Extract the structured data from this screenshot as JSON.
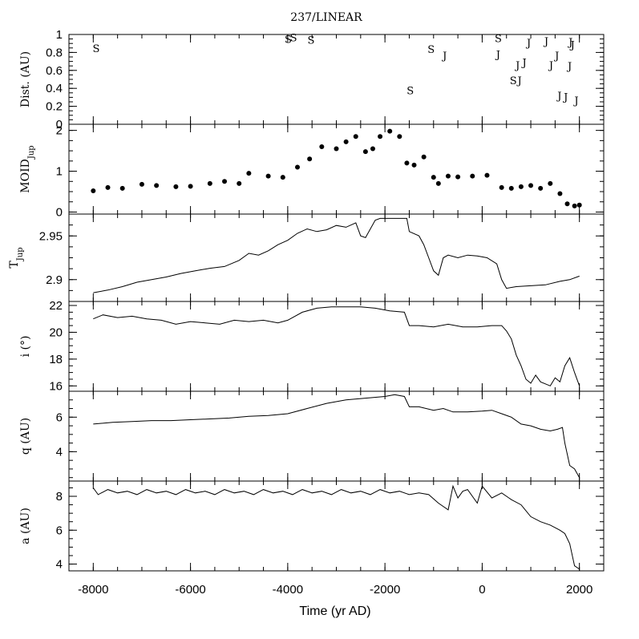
{
  "title": "237/LINEAR",
  "xlabel": "Time (yr AD)",
  "chart_data": {
    "type": "line",
    "title": "237/LINEAR",
    "xlabel": "Time (yr AD)",
    "xlim": [
      -8500,
      2500
    ],
    "xticks": [
      -8000,
      -6000,
      -4000,
      -2000,
      0,
      2000
    ],
    "panels": [
      {
        "id": "dist",
        "ylabel": "Dist. (AU)",
        "type": "markers",
        "ylim": [
          0,
          1
        ],
        "yticks": [
          0,
          0.2,
          0.4,
          0.6,
          0.8,
          1
        ],
        "yticklabels": [
          "0",
          "0.2",
          "0.4",
          "0.6",
          "0.8",
          "1"
        ],
        "points": [
          {
            "x": -7940,
            "y": 0.85,
            "label": "S"
          },
          {
            "x": -3990,
            "y": 0.95,
            "label": "S"
          },
          {
            "x": -3880,
            "y": 0.97,
            "label": "S"
          },
          {
            "x": -3520,
            "y": 0.94,
            "label": "S"
          },
          {
            "x": -1480,
            "y": 0.38,
            "label": "S"
          },
          {
            "x": -1050,
            "y": 0.84,
            "label": "S"
          },
          {
            "x": -770,
            "y": 0.77,
            "label": "J"
          },
          {
            "x": 330,
            "y": 0.96,
            "label": "S"
          },
          {
            "x": 330,
            "y": 0.78,
            "label": "J"
          },
          {
            "x": 640,
            "y": 0.49,
            "label": "S"
          },
          {
            "x": 770,
            "y": 0.49,
            "label": "J"
          },
          {
            "x": 730,
            "y": 0.66,
            "label": "J"
          },
          {
            "x": 870,
            "y": 0.69,
            "label": "J"
          },
          {
            "x": 960,
            "y": 0.91,
            "label": "J"
          },
          {
            "x": 1320,
            "y": 0.93,
            "label": "J"
          },
          {
            "x": 1420,
            "y": 0.66,
            "label": "J"
          },
          {
            "x": 1540,
            "y": 0.77,
            "label": "J"
          },
          {
            "x": 1590,
            "y": 0.32,
            "label": "J"
          },
          {
            "x": 1720,
            "y": 0.31,
            "label": "J"
          },
          {
            "x": 1820,
            "y": 0.92,
            "label": "J"
          },
          {
            "x": 1860,
            "y": 0.89,
            "label": "J"
          },
          {
            "x": 1800,
            "y": 0.65,
            "label": "J"
          },
          {
            "x": 1940,
            "y": 0.27,
            "label": "J"
          }
        ]
      },
      {
        "id": "moid",
        "ylabel": "MOID",
        "ylabel_sub": "Jup",
        "type": "dots",
        "ylim": [
          -0.05,
          2.15
        ],
        "yticks": [
          0,
          1,
          2
        ],
        "yticklabels": [
          "0",
          "1",
          "2"
        ],
        "x": [
          -8000,
          -7700,
          -7400,
          -7000,
          -6700,
          -6300,
          -6000,
          -5600,
          -5300,
          -5000,
          -4800,
          -4400,
          -4100,
          -3800,
          -3550,
          -3300,
          -3000,
          -2800,
          -2600,
          -2400,
          -2250,
          -2100,
          -1900,
          -1700,
          -1550,
          -1400,
          -1200,
          -1000,
          -900,
          -700,
          -500,
          -200,
          100,
          400,
          600,
          800,
          1000,
          1200,
          1400,
          1600,
          1750,
          1900,
          2000
        ],
        "y": [
          0.52,
          0.6,
          0.58,
          0.68,
          0.65,
          0.62,
          0.63,
          0.7,
          0.75,
          0.7,
          0.95,
          0.88,
          0.85,
          1.1,
          1.3,
          1.6,
          1.55,
          1.72,
          1.85,
          1.48,
          1.55,
          1.85,
          1.98,
          1.85,
          1.2,
          1.15,
          1.35,
          0.85,
          0.7,
          0.88,
          0.86,
          0.88,
          0.9,
          0.6,
          0.58,
          0.62,
          0.65,
          0.58,
          0.7,
          0.45,
          0.2,
          0.15,
          0.17
        ]
      },
      {
        "id": "tjup",
        "ylabel": "T",
        "ylabel_sub": "Jup",
        "type": "line",
        "ylim": [
          2.875,
          2.975
        ],
        "yticks": [
          2.9,
          2.95
        ],
        "yticklabels": [
          "2.9",
          "2.95"
        ],
        "x": [
          -8000,
          -7700,
          -7400,
          -7100,
          -6800,
          -6500,
          -6200,
          -5900,
          -5600,
          -5300,
          -5000,
          -4800,
          -4600,
          -4400,
          -4200,
          -4000,
          -3800,
          -3600,
          -3400,
          -3200,
          -3000,
          -2800,
          -2600,
          -2500,
          -2400,
          -2200,
          -2100,
          -1900,
          -1700,
          -1550,
          -1500,
          -1300,
          -1200,
          -1100,
          -1000,
          -900,
          -800,
          -700,
          -500,
          -300,
          -100,
          100,
          300,
          400,
          500,
          700,
          1000,
          1300,
          1600,
          1800,
          2000
        ],
        "y": [
          2.885,
          2.888,
          2.892,
          2.897,
          2.9,
          2.903,
          2.907,
          2.91,
          2.913,
          2.915,
          2.922,
          2.93,
          2.928,
          2.933,
          2.94,
          2.945,
          2.953,
          2.958,
          2.955,
          2.957,
          2.962,
          2.96,
          2.965,
          2.95,
          2.948,
          2.968,
          2.97,
          2.97,
          2.97,
          2.97,
          2.955,
          2.95,
          2.94,
          2.925,
          2.91,
          2.905,
          2.925,
          2.928,
          2.925,
          2.928,
          2.927,
          2.925,
          2.918,
          2.9,
          2.89,
          2.892,
          2.893,
          2.894,
          2.898,
          2.9,
          2.904
        ]
      },
      {
        "id": "incl",
        "ylabel": "i (°)",
        "type": "line",
        "ylim": [
          15.6,
          22.3
        ],
        "yticks": [
          16,
          18,
          20,
          22
        ],
        "yticklabels": [
          "16",
          "18",
          "20",
          "22"
        ],
        "x": [
          -8000,
          -7800,
          -7500,
          -7200,
          -6900,
          -6600,
          -6300,
          -6000,
          -5700,
          -5400,
          -5100,
          -4800,
          -4500,
          -4200,
          -4000,
          -3700,
          -3400,
          -3100,
          -2800,
          -2500,
          -2200,
          -1900,
          -1600,
          -1500,
          -1300,
          -1000,
          -700,
          -400,
          -100,
          200,
          400,
          500,
          600,
          700,
          800,
          900,
          1000,
          1100,
          1200,
          1400,
          1500,
          1600,
          1700,
          1800,
          1900,
          2000
        ],
        "y": [
          21.0,
          21.3,
          21.1,
          21.2,
          21.0,
          20.9,
          20.6,
          20.8,
          20.7,
          20.6,
          20.9,
          20.8,
          20.9,
          20.7,
          20.9,
          21.5,
          21.8,
          21.9,
          21.9,
          21.9,
          21.8,
          21.6,
          21.5,
          20.5,
          20.5,
          20.4,
          20.6,
          20.4,
          20.4,
          20.5,
          20.5,
          20.1,
          19.5,
          18.3,
          17.5,
          16.5,
          16.2,
          16.8,
          16.3,
          16.0,
          16.6,
          16.3,
          17.5,
          18.1,
          17.0,
          16.0
        ]
      },
      {
        "id": "q",
        "ylabel": "q (AU)",
        "type": "line",
        "ylim": [
          2.3,
          7.5
        ],
        "yticks": [
          4,
          6
        ],
        "yticklabels": [
          "4",
          "6"
        ],
        "x": [
          -8000,
          -7600,
          -7200,
          -6800,
          -6400,
          -6000,
          -5600,
          -5200,
          -4800,
          -4400,
          -4000,
          -3600,
          -3200,
          -2800,
          -2400,
          -2000,
          -1800,
          -1600,
          -1500,
          -1300,
          -1000,
          -800,
          -600,
          -300,
          0,
          200,
          400,
          600,
          800,
          1000,
          1200,
          1400,
          1550,
          1650,
          1700,
          1800,
          1900,
          2000
        ],
        "y": [
          5.6,
          5.7,
          5.75,
          5.8,
          5.8,
          5.85,
          5.9,
          5.95,
          6.05,
          6.1,
          6.2,
          6.5,
          6.8,
          7.0,
          7.1,
          7.2,
          7.3,
          7.2,
          6.6,
          6.6,
          6.4,
          6.5,
          6.3,
          6.3,
          6.35,
          6.4,
          6.2,
          6.0,
          5.6,
          5.5,
          5.3,
          5.2,
          5.3,
          5.4,
          4.5,
          3.2,
          3.0,
          2.5
        ]
      },
      {
        "id": "a",
        "ylabel": "a (AU)",
        "type": "line",
        "ylim": [
          3.6,
          8.9
        ],
        "yticks": [
          4,
          6,
          8
        ],
        "yticklabels": [
          "4",
          "6",
          "8"
        ],
        "x": [
          -8000,
          -7900,
          -7700,
          -7500,
          -7300,
          -7100,
          -6900,
          -6700,
          -6500,
          -6300,
          -6100,
          -5900,
          -5700,
          -5500,
          -5300,
          -5100,
          -4900,
          -4700,
          -4500,
          -4300,
          -4100,
          -3900,
          -3700,
          -3500,
          -3300,
          -3100,
          -2900,
          -2700,
          -2500,
          -2300,
          -2100,
          -1900,
          -1700,
          -1500,
          -1300,
          -1100,
          -900,
          -700,
          -600,
          -500,
          -400,
          -300,
          -100,
          0,
          200,
          400,
          600,
          800,
          1000,
          1200,
          1400,
          1600,
          1700,
          1800,
          1900,
          2000
        ],
        "y": [
          8.5,
          8.1,
          8.4,
          8.2,
          8.3,
          8.1,
          8.4,
          8.2,
          8.3,
          8.1,
          8.4,
          8.2,
          8.3,
          8.1,
          8.4,
          8.2,
          8.3,
          8.1,
          8.4,
          8.2,
          8.3,
          8.1,
          8.4,
          8.2,
          8.3,
          8.1,
          8.4,
          8.2,
          8.3,
          8.1,
          8.4,
          8.2,
          8.3,
          8.1,
          8.2,
          8.1,
          7.6,
          7.2,
          8.6,
          7.9,
          8.3,
          8.4,
          7.6,
          8.6,
          7.9,
          8.2,
          7.8,
          7.5,
          6.8,
          6.5,
          6.3,
          6.0,
          5.8,
          5.2,
          3.9,
          3.7
        ]
      }
    ]
  }
}
